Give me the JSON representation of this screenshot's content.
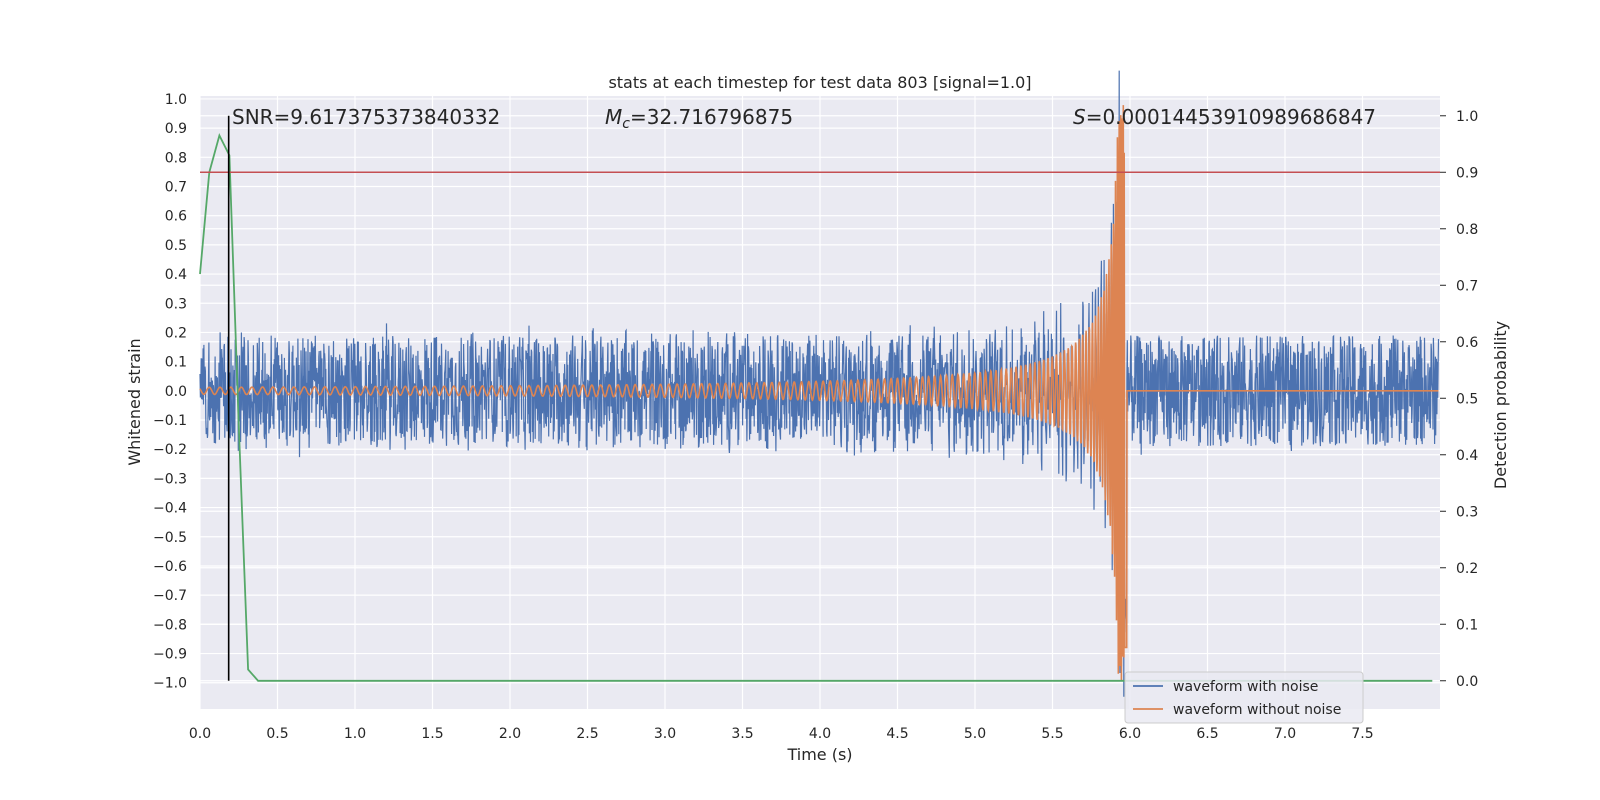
{
  "chart_data": {
    "type": "line",
    "title": "stats at each timestep for test data 803 [signal=1.0]",
    "xlabel": "Time (s)",
    "ylabel_left": "Whitened strain",
    "ylabel_right": "Detection probability",
    "xlim": [
      0.0,
      8.0
    ],
    "ylim_left": [
      -1.09,
      1.01
    ],
    "ylim_right": [
      -0.05,
      1.035
    ],
    "x_ticks": [
      "0.0",
      "0.5",
      "1.0",
      "1.5",
      "2.0",
      "2.5",
      "3.0",
      "3.5",
      "4.0",
      "4.5",
      "5.0",
      "5.5",
      "6.0",
      "6.5",
      "7.0",
      "7.5"
    ],
    "y_left_ticks": [
      "1.0",
      "0.9",
      "0.8",
      "0.7",
      "0.6",
      "0.5",
      "0.4",
      "0.3",
      "0.2",
      "0.1",
      "0.0",
      "−0.1",
      "−0.2",
      "−0.3",
      "−0.4",
      "−0.5",
      "−0.6",
      "−0.7",
      "−0.8",
      "−0.9",
      "−1.0"
    ],
    "y_right_ticks": [
      "1.0",
      "0.9",
      "0.8",
      "0.7",
      "0.6",
      "0.5",
      "0.4",
      "0.3",
      "0.2",
      "0.1",
      "0.0"
    ],
    "grid": true,
    "legend_position": "bottom-right",
    "annotations": {
      "snr": "SNR=9.617375373840332",
      "mc_symbol": "M",
      "mc_sub": "c",
      "mc_value": "=32.716796875",
      "s_symbol": "S",
      "s_value": "=0.00014453910989686847"
    },
    "series": [
      {
        "name": "waveform with noise",
        "color": "#4c72b0",
        "description": "whitened strain noise band about ±0.2, with chirp growing to merger near t=5.97 s"
      },
      {
        "name": "waveform without noise",
        "color": "#dd8452",
        "description": "clean chirp signal, amplitude growing to ~±1.0 at t=5.97 s, flat afterwards"
      },
      {
        "name": "detection probability",
        "color": "#55a868",
        "axis": "right",
        "x": [
          0.0,
          0.06,
          0.125,
          0.19,
          0.25,
          0.31,
          0.375,
          7.95
        ],
        "values": [
          0.72,
          0.9,
          0.965,
          0.93,
          0.45,
          0.02,
          0.0,
          0.0
        ]
      }
    ],
    "reference_lines": {
      "threshold_right_axis": 0.9,
      "threshold_color": "#c44e52",
      "vertical_time": 0.185,
      "vertical_color": "#000000"
    }
  }
}
